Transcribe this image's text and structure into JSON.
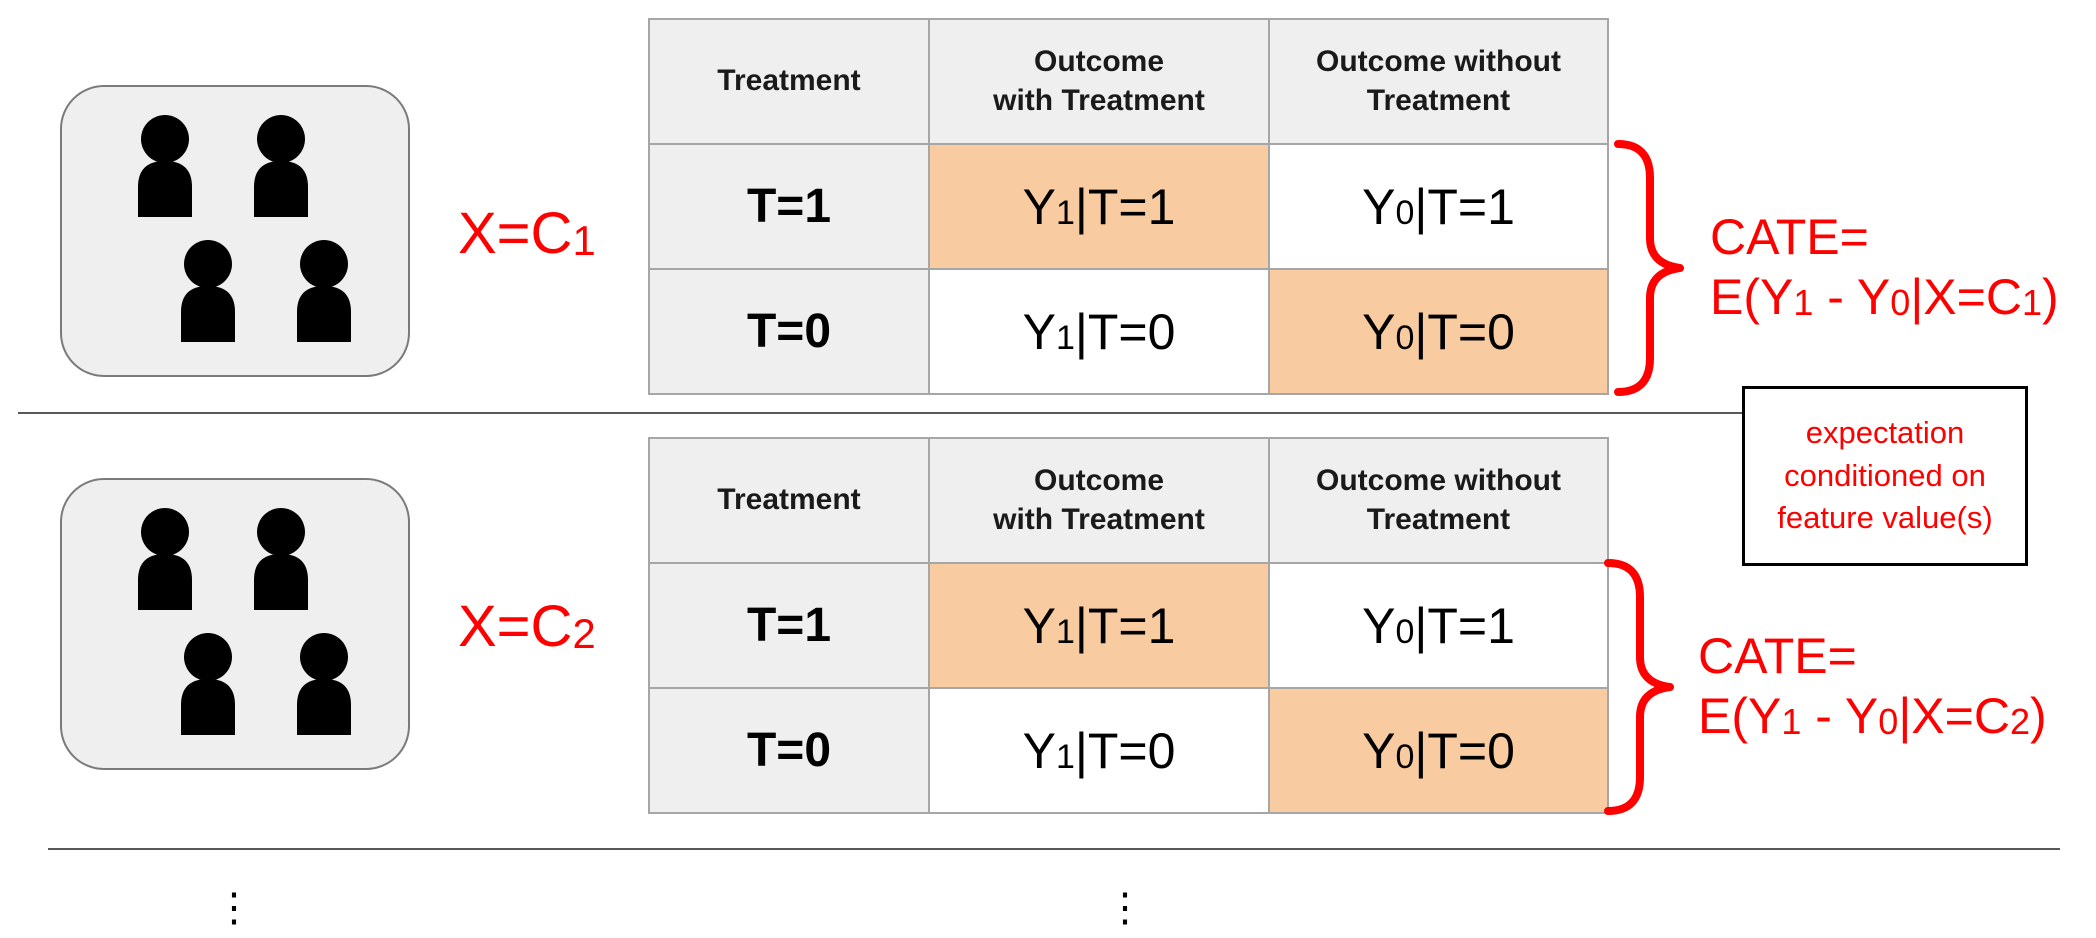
{
  "colors": {
    "accent": "#ff0000",
    "highlight_cell": "#f8cba0",
    "header_cell": "#efefef"
  },
  "icons": [
    "person-icon"
  ],
  "groups": [
    {
      "x_label": "X=C",
      "x_sub": "1",
      "cate_line1": "CATE=",
      "cate_line2_a": "E(Y",
      "cate_sub_a": "1",
      "cate_line2_b": " - Y",
      "cate_sub_b": "0",
      "cate_line2_c": "|X=C",
      "cate_sub_c": "1",
      "cate_line2_d": ")"
    },
    {
      "x_label": "X=C",
      "x_sub": "2",
      "cate_line1": "CATE=",
      "cate_line2_a": "E(Y",
      "cate_sub_a": "1",
      "cate_line2_b": " - Y",
      "cate_sub_b": "0",
      "cate_line2_c": "|X=C",
      "cate_sub_c": "2",
      "cate_line2_d": ")"
    }
  ],
  "table": {
    "headers": {
      "treatment": "Treatment",
      "with_line1": "Outcome",
      "with_line2": "with Treatment",
      "without_line1": "Outcome without",
      "without_line2": "Treatment"
    },
    "rows": [
      {
        "label": "T=1",
        "y1_a": "Y",
        "y1_sub": "1",
        "y1_b": "|T=1",
        "y0_a": "Y",
        "y0_sub": "0",
        "y0_b": "|T=1"
      },
      {
        "label": "T=0",
        "y1_a": "Y",
        "y1_sub": "1",
        "y1_b": "|T=0",
        "y0_a": "Y",
        "y0_sub": "0",
        "y0_b": "|T=0"
      }
    ]
  },
  "note": {
    "line1": "expectation",
    "line2": "conditioned on",
    "line3": "feature value(s)"
  },
  "ellipsis": "⋮"
}
